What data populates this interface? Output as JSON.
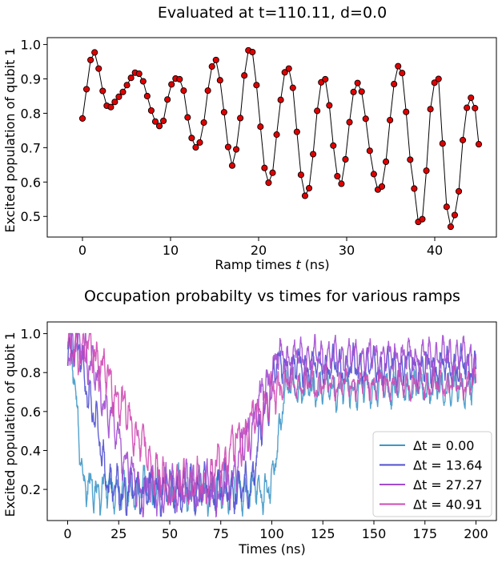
{
  "chart_data": [
    {
      "type": "line",
      "title": "Evaluated at t=110.11, d=0.0",
      "xlabel": "Ramp times t (ns)",
      "xlabel_main": "Ramp times ",
      "xlabel_var": "t",
      "xlabel_unit": " (ns)",
      "ylabel": "Excited population of qubit 1",
      "xlim": [
        -4,
        47
      ],
      "ylim": [
        0.44,
        1.02
      ],
      "xticks": [
        0,
        10,
        20,
        30,
        40
      ],
      "yticks": [
        0.5,
        0.6,
        0.7,
        0.8,
        0.9,
        1.0
      ],
      "grid": false,
      "line_color": "#000000",
      "marker_color": "#e00000",
      "x": [
        0.0,
        0.46,
        0.92,
        1.38,
        1.84,
        2.3,
        2.76,
        3.22,
        3.67,
        4.13,
        4.59,
        5.05,
        5.51,
        5.97,
        6.43,
        6.89,
        7.35,
        7.81,
        8.27,
        8.73,
        9.19,
        9.65,
        10.11,
        10.57,
        11.03,
        11.49,
        11.94,
        12.4,
        12.86,
        13.32,
        13.78,
        14.24,
        14.7,
        15.16,
        15.62,
        16.08,
        16.54,
        17.0,
        17.46,
        17.92,
        18.38,
        18.84,
        19.3,
        19.76,
        20.21,
        20.67,
        21.13,
        21.59,
        22.05,
        22.51,
        22.97,
        23.43,
        23.89,
        24.35,
        24.81,
        25.27,
        25.73,
        26.19,
        26.65,
        27.11,
        27.57,
        28.03,
        28.48,
        28.94,
        29.4,
        29.86,
        30.32,
        30.78,
        31.24,
        31.7,
        32.16,
        32.62,
        33.08,
        33.54,
        34.0,
        34.46,
        34.92,
        35.38,
        35.84,
        36.3,
        36.75,
        37.21,
        37.67,
        38.13,
        38.59,
        39.05,
        39.51,
        39.97,
        40.43,
        40.89,
        41.35,
        41.81,
        42.27,
        42.73,
        43.19,
        43.65,
        44.11,
        44.57,
        45.0
      ],
      "y": [
        0.785,
        0.87,
        0.955,
        0.977,
        0.93,
        0.865,
        0.822,
        0.818,
        0.833,
        0.848,
        0.862,
        0.882,
        0.903,
        0.918,
        0.915,
        0.893,
        0.85,
        0.808,
        0.776,
        0.763,
        0.778,
        0.84,
        0.884,
        0.901,
        0.899,
        0.866,
        0.788,
        0.728,
        0.701,
        0.715,
        0.773,
        0.866,
        0.936,
        0.955,
        0.896,
        0.803,
        0.702,
        0.648,
        0.695,
        0.786,
        0.91,
        0.983,
        0.978,
        0.882,
        0.761,
        0.641,
        0.598,
        0.627,
        0.738,
        0.839,
        0.919,
        0.93,
        0.874,
        0.746,
        0.621,
        0.56,
        0.582,
        0.681,
        0.807,
        0.89,
        0.899,
        0.823,
        0.706,
        0.617,
        0.595,
        0.666,
        0.774,
        0.862,
        0.888,
        0.863,
        0.784,
        0.691,
        0.623,
        0.578,
        0.587,
        0.659,
        0.78,
        0.885,
        0.937,
        0.917,
        0.804,
        0.665,
        0.581,
        0.484,
        0.492,
        0.633,
        0.812,
        0.889,
        0.9,
        0.712,
        0.528,
        0.47,
        0.504,
        0.573,
        0.722,
        0.816,
        0.845,
        0.815,
        0.71
      ]
    },
    {
      "type": "line",
      "title": "Occupation probabilty vs times for various ramps",
      "xlabel": "Times (ns)",
      "ylabel": "Excited population of qubit 1",
      "xlim": [
        -10,
        210
      ],
      "ylim": [
        0.04,
        1.06
      ],
      "xticks": [
        0,
        25,
        50,
        75,
        100,
        125,
        150,
        175,
        200
      ],
      "yticks": [
        0.2,
        0.4,
        0.6,
        0.8,
        1.0
      ],
      "grid": false,
      "legend_position": "lower-right",
      "legend_prefix": "Δt =",
      "series": [
        {
          "name": "0.00",
          "color": "#3f97c8",
          "ramp": 0.0,
          "low": 0.2,
          "high": 0.72,
          "amp_low": 0.12,
          "amp_high": 0.1,
          "seed": 11
        },
        {
          "name": "13.64",
          "color": "#4f4fcf",
          "ramp": 13.64,
          "low": 0.2,
          "high": 0.83,
          "amp_low": 0.13,
          "amp_high": 0.1,
          "seed": 23
        },
        {
          "name": "27.27",
          "color": "#a24cd0",
          "ramp": 27.27,
          "low": 0.2,
          "high": 0.88,
          "amp_low": 0.13,
          "amp_high": 0.1,
          "seed": 37
        },
        {
          "name": "40.91",
          "color": "#d04ab4",
          "ramp": 40.91,
          "low": 0.22,
          "high": 0.74,
          "amp_low": 0.13,
          "amp_high": 0.08,
          "seed": 53
        }
      ]
    }
  ]
}
